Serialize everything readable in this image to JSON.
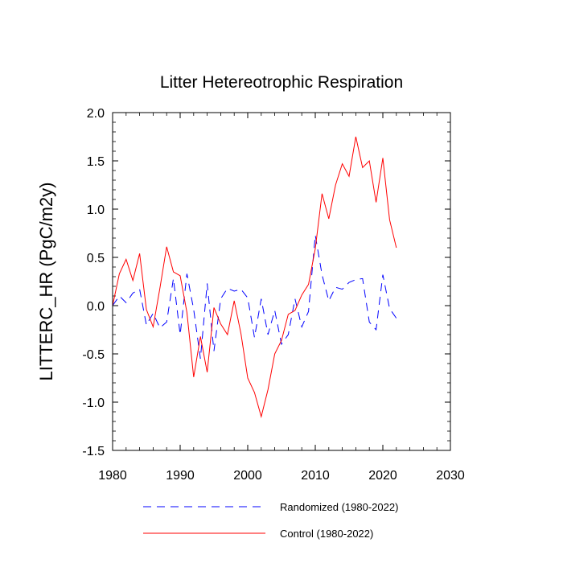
{
  "chart_data": {
    "type": "line",
    "title": "Litter Hetereotrophic Respiration",
    "xlabel": "",
    "ylabel": "LITTERC_HR  (PgC/m2y)",
    "xlim": [
      1980,
      2030
    ],
    "ylim": [
      -1.5,
      2.0
    ],
    "xticks": [
      1980,
      1990,
      2000,
      2010,
      2020,
      2030
    ],
    "xtick_labels": [
      "1980",
      "1990",
      "2000",
      "2010",
      "2020",
      "2030"
    ],
    "yticks": [
      -1.5,
      -1.0,
      -0.5,
      0.0,
      0.5,
      1.0,
      1.5,
      2.0
    ],
    "ytick_labels": [
      "-1.5",
      "-1.0",
      "-0.5",
      "0.0",
      "0.5",
      "1.0",
      "1.5",
      "2.0"
    ],
    "x": [
      1980,
      1981,
      1982,
      1983,
      1984,
      1985,
      1986,
      1987,
      1988,
      1989,
      1990,
      1991,
      1992,
      1993,
      1994,
      1995,
      1996,
      1997,
      1998,
      1999,
      2000,
      2001,
      2002,
      2003,
      2004,
      2005,
      2006,
      2007,
      2008,
      2009,
      2010,
      2011,
      2012,
      2013,
      2014,
      2015,
      2016,
      2017,
      2018,
      2019,
      2020,
      2021,
      2022
    ],
    "series": [
      {
        "name": "Randomized (1980-2022)",
        "color": "#0000ff",
        "dash": "dashed",
        "values": [
          0.0,
          0.1,
          0.03,
          0.13,
          0.17,
          -0.2,
          -0.08,
          -0.23,
          -0.17,
          0.28,
          -0.3,
          0.33,
          -0.04,
          -0.55,
          0.23,
          -0.47,
          0.07,
          0.18,
          0.15,
          0.17,
          0.08,
          -0.33,
          0.07,
          -0.3,
          -0.05,
          -0.4,
          -0.3,
          0.07,
          -0.22,
          -0.06,
          0.73,
          0.32,
          0.05,
          0.19,
          0.17,
          0.24,
          0.27,
          0.28,
          -0.17,
          -0.25,
          0.32,
          -0.03,
          -0.13
        ]
      },
      {
        "name": "Control (1980-2022)",
        "color": "#ff0000",
        "dash": "solid",
        "values": [
          0.0,
          0.33,
          0.48,
          0.26,
          0.54,
          -0.04,
          -0.22,
          0.18,
          0.61,
          0.35,
          0.31,
          -0.07,
          -0.74,
          -0.32,
          -0.69,
          -0.02,
          -0.19,
          -0.3,
          0.05,
          -0.29,
          -0.75,
          -0.9,
          -1.15,
          -0.87,
          -0.5,
          -0.36,
          -0.09,
          -0.05,
          0.11,
          0.22,
          0.59,
          1.16,
          0.9,
          1.25,
          1.47,
          1.34,
          1.75,
          1.43,
          1.5,
          1.07,
          1.53,
          0.89,
          0.6
        ]
      }
    ],
    "legend_position": "bottom"
  }
}
